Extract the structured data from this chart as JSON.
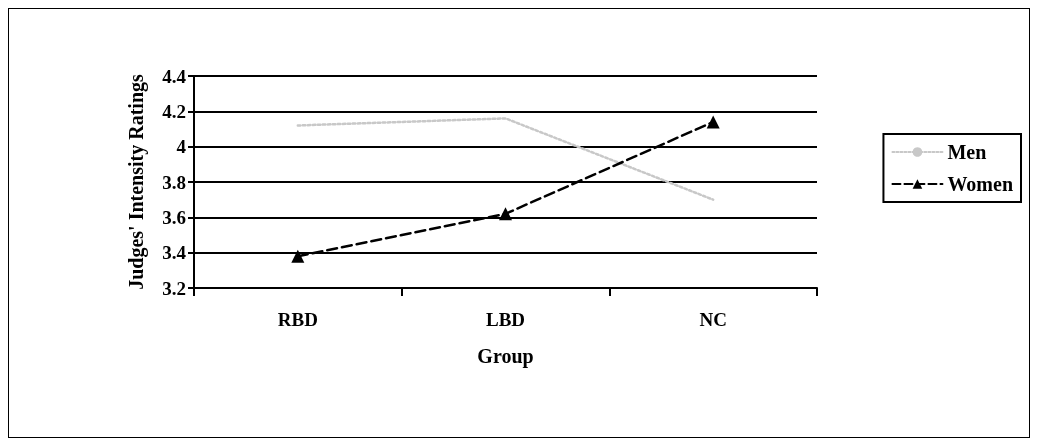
{
  "chart_data": {
    "type": "line",
    "xlabel": "Group",
    "ylabel": "Judges' Intensity Ratings",
    "categories": [
      "RBD",
      "LBD",
      "NC"
    ],
    "series": [
      {
        "name": "Men",
        "color": "#c8c8c8",
        "values": [
          4.12,
          4.16,
          3.7
        ],
        "marker": "none",
        "line_style": "dotted"
      },
      {
        "name": "Women",
        "color": "#000000",
        "values": [
          3.38,
          3.62,
          4.14
        ],
        "marker": "triangle",
        "line_style": "dashed"
      }
    ],
    "ylim": [
      3.2,
      4.4
    ],
    "yticks": [
      3.2,
      3.4,
      3.6,
      3.8,
      4,
      4.2,
      4.4
    ],
    "grid": "y",
    "legend": "right"
  }
}
